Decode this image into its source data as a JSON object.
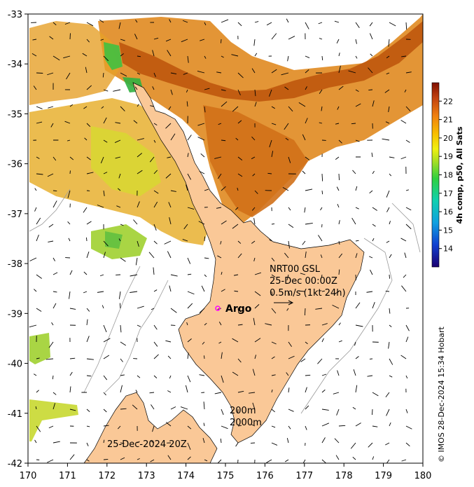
{
  "map": {
    "lon_ticks": [
      "170",
      "171",
      "172",
      "173",
      "174",
      "175",
      "176",
      "177",
      "178",
      "179",
      "180"
    ],
    "lat_ticks": [
      "-33",
      "-34",
      "-35",
      "-36",
      "-37",
      "-38",
      "-39",
      "-40",
      "-41",
      "-42"
    ],
    "lon_range": [
      170,
      180
    ],
    "lat_range": [
      -42,
      -33
    ]
  },
  "colorbar": {
    "title": "4h comp, p50, All Sats",
    "ticks": [
      "22",
      "21",
      "20",
      "19",
      "18",
      "17",
      "16",
      "15",
      "14"
    ],
    "range": [
      13,
      23
    ]
  },
  "annotations": {
    "product": "NRT00 GSL",
    "date": "25-Dec 00:00Z",
    "scale_label": "0.5m/s (1kt 24h)",
    "argo_label": "Argo",
    "contour_200": "200m",
    "contour_2000": "2000m",
    "timestamp": "25-Dec-2024 20Z",
    "credit": "© IMOS 28-Dec-2024 15:34 Hobart"
  },
  "colors": {
    "land": "#fac897",
    "argo_marker": "#ff00ff",
    "sst_warm": "#c05a10",
    "sst_mid": "#e09020",
    "sst_cool": "#c8e020",
    "sst_green": "#30c040"
  }
}
